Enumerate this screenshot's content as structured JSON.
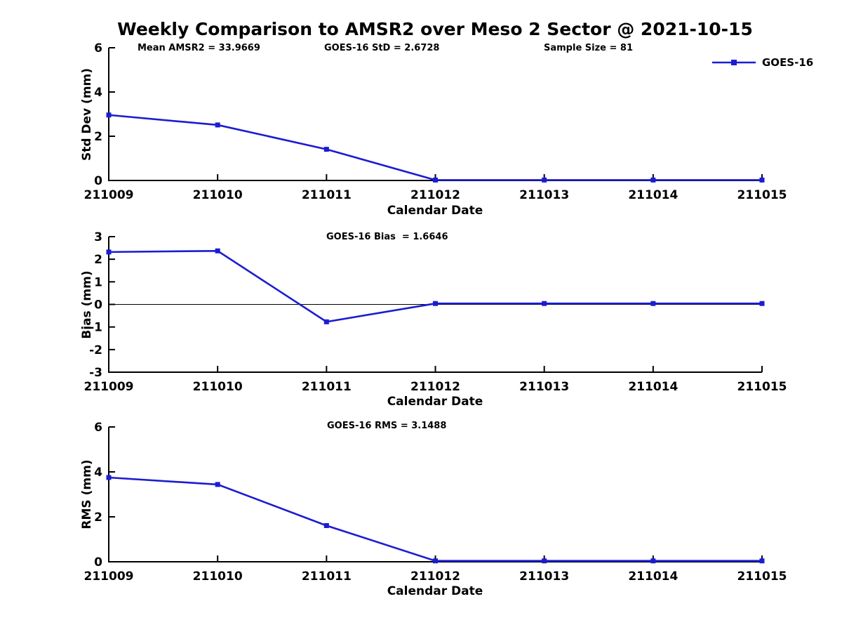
{
  "figure": {
    "title": "Weekly Comparison to AMSR2 over Meso 2 Sector @ 2021-10-15",
    "legend_label": "GOES-16"
  },
  "colors": {
    "series": "#1c1cd2",
    "axis": "#000000",
    "text": "#000000",
    "background": "#ffffff"
  },
  "chart_data": [
    {
      "type": "line",
      "name": "std-dev",
      "annotations": [
        "Mean AMSR2 = 33.9669",
        "GOES-16 StD = 2.6728",
        "Sample Size = 81"
      ],
      "categories": [
        "211009",
        "211010",
        "211011",
        "211012",
        "211013",
        "211014",
        "211015"
      ],
      "series": [
        {
          "name": "GOES-16",
          "marker": "square",
          "values": [
            2.96,
            2.51,
            1.41,
            0.02,
            0.02,
            0.02,
            0.02
          ]
        }
      ],
      "xlabel": "Calendar Date",
      "ylabel": "Std Dev (mm)",
      "ylim": [
        0,
        6
      ],
      "yticks": [
        0,
        2,
        4,
        6
      ],
      "zero_line": false,
      "grid": false,
      "legend_position": "top-right-outside"
    },
    {
      "type": "line",
      "name": "bias",
      "annotations": [
        "GOES-16 Bias  = 1.6646"
      ],
      "categories": [
        "211009",
        "211010",
        "211011",
        "211012",
        "211013",
        "211014",
        "211015"
      ],
      "series": [
        {
          "name": "GOES-16",
          "marker": "square",
          "values": [
            2.32,
            2.37,
            -0.77,
            0.04,
            0.04,
            0.04,
            0.04
          ]
        }
      ],
      "xlabel": "Calendar Date",
      "ylabel": "Bias (mm)",
      "ylim": [
        -3,
        3
      ],
      "yticks": [
        -3,
        -2,
        -1,
        0,
        1,
        2,
        3
      ],
      "zero_line": true,
      "grid": false,
      "legend_position": "none"
    },
    {
      "type": "line",
      "name": "rms",
      "annotations": [
        "GOES-16 RMS = 3.1488"
      ],
      "categories": [
        "211009",
        "211010",
        "211011",
        "211012",
        "211013",
        "211014",
        "211015"
      ],
      "series": [
        {
          "name": "GOES-16",
          "marker": "square",
          "values": [
            3.75,
            3.44,
            1.61,
            0.04,
            0.04,
            0.04,
            0.04
          ]
        }
      ],
      "xlabel": "Calendar Date",
      "ylabel": "RMS (mm)",
      "ylim": [
        0,
        6
      ],
      "yticks": [
        0,
        2,
        4,
        6
      ],
      "zero_line": false,
      "grid": false,
      "legend_position": "none"
    }
  ]
}
